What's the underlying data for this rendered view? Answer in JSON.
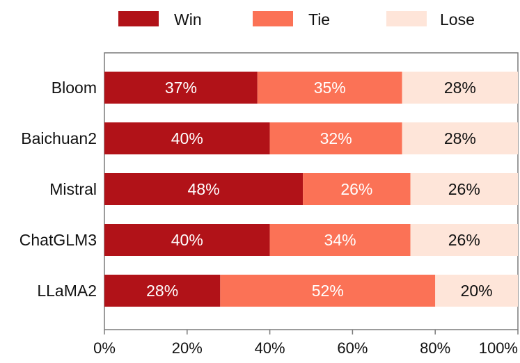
{
  "chart_data": {
    "type": "bar",
    "orientation": "horizontal",
    "stacked": true,
    "categories": [
      "Bloom",
      "Baichuan2",
      "Mistral",
      "ChatGLM3",
      "LLaMA2"
    ],
    "series": [
      {
        "name": "Win",
        "color": "#b11218",
        "label_color": "#ffffff",
        "values": [
          37,
          40,
          48,
          40,
          28
        ]
      },
      {
        "name": "Tie",
        "color": "#fb7256",
        "label_color": "#ffffff",
        "values": [
          35,
          32,
          26,
          34,
          52
        ]
      },
      {
        "name": "Lose",
        "color": "#fee5d9",
        "label_color": "#111111",
        "values": [
          28,
          28,
          26,
          26,
          20
        ]
      }
    ],
    "value_suffix": "%",
    "xlim": [
      0,
      100
    ],
    "xticks": [
      0,
      20,
      40,
      60,
      80,
      100
    ],
    "xtick_labels": [
      "0%",
      "20%",
      "40%",
      "60%",
      "80%",
      "100%"
    ],
    "legend_position": "top",
    "grid": false
  }
}
